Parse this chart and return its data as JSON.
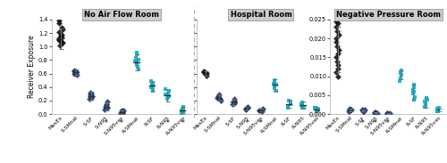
{
  "panels": [
    {
      "title": "No Air Flow Room",
      "ylim": [
        0,
        1.4
      ],
      "yticks": [
        0.0,
        0.2,
        0.4,
        0.6,
        0.8,
        1.0,
        1.2,
        1.4
      ],
      "ytick_labels": [
        "0.0",
        "0.2",
        "0.4",
        "0.6",
        "0.8",
        "1.0",
        "1.2",
        "1.4"
      ],
      "ylabel": "Receiver Exposure",
      "show_yticks": true,
      "categories": [
        "MaxEx",
        "S-SMnat",
        "S-SF",
        "S-N95",
        "S-N95vas",
        "R-SMnat",
        "R-SF",
        "R-N95",
        "R-N95vas"
      ],
      "groups": [
        {
          "color": "#111111",
          "marker": "D",
          "size": 12,
          "points": [
            1.02,
            1.05,
            1.07,
            1.08,
            1.1,
            1.11,
            1.12,
            1.14,
            1.16,
            1.18,
            1.22,
            1.25,
            1.28,
            1.35,
            1.38
          ],
          "mean": 1.12,
          "ci": 0.15,
          "asterisk": false
        },
        {
          "color": "#1b3d6e",
          "marker": "D",
          "size": 12,
          "points": [
            0.58,
            0.6,
            0.61,
            0.62,
            0.63,
            0.64,
            0.65
          ],
          "mean": 0.62,
          "ci": 0.04,
          "asterisk": false
        },
        {
          "color": "#1b3d6e",
          "marker": "D",
          "size": 12,
          "points": [
            0.22,
            0.24,
            0.26,
            0.27,
            0.28,
            0.29,
            0.31,
            0.32
          ],
          "mean": 0.27,
          "ci": 0.06,
          "asterisk": false
        },
        {
          "color": "#1b3d6e",
          "marker": "D",
          "size": 12,
          "points": [
            0.07,
            0.09,
            0.1,
            0.11,
            0.13,
            0.15,
            0.18
          ],
          "mean": 0.11,
          "ci": 0.06,
          "asterisk": true
        },
        {
          "color": "#1b3d6e",
          "marker": "D",
          "size": 12,
          "points": [
            0.01,
            0.02,
            0.03,
            0.04,
            0.05,
            0.06
          ],
          "mean": 0.03,
          "ci": 0.025,
          "asterisk": true
        },
        {
          "color": "#00b4cc",
          "marker": "s",
          "size": 12,
          "points": [
            0.66,
            0.7,
            0.73,
            0.76,
            0.78,
            0.8,
            0.83,
            0.88,
            0.91
          ],
          "mean": 0.77,
          "ci": 0.12,
          "asterisk": false
        },
        {
          "color": "#00b4cc",
          "marker": "s",
          "size": 12,
          "points": [
            0.35,
            0.38,
            0.4,
            0.42,
            0.44,
            0.46,
            0.49
          ],
          "mean": 0.42,
          "ci": 0.07,
          "asterisk": false
        },
        {
          "color": "#00b4cc",
          "marker": "s",
          "size": 12,
          "points": [
            0.22,
            0.25,
            0.27,
            0.29,
            0.31,
            0.34,
            0.37
          ],
          "mean": 0.28,
          "ci": 0.09,
          "asterisk": true
        },
        {
          "color": "#00b4cc",
          "marker": "s",
          "size": 12,
          "points": [
            0.02,
            0.04,
            0.05,
            0.06,
            0.08,
            0.09,
            0.11
          ],
          "mean": 0.06,
          "ci": 0.05,
          "asterisk": true
        }
      ]
    },
    {
      "title": "Hospital Room",
      "ylim": [
        0,
        1.4
      ],
      "yticks": [
        0.0,
        0.2,
        0.4,
        0.6,
        0.8,
        1.0,
        1.2,
        1.4
      ],
      "ytick_labels": [
        "",
        "",
        "",
        "",
        "",
        "",
        "",
        ""
      ],
      "ylabel": "",
      "show_yticks": false,
      "categories": [
        "MaxEx",
        "S-SMnat",
        "S-SF",
        "S-N95",
        "S-N95vas",
        "R-SMnat",
        "R-SF",
        "R-N95",
        "R-N95vas"
      ],
      "groups": [
        {
          "color": "#111111",
          "marker": "D",
          "size": 12,
          "points": [
            0.57,
            0.59,
            0.6,
            0.61,
            0.62,
            0.63
          ],
          "mean": 0.6,
          "ci": 0.03,
          "asterisk": false
        },
        {
          "color": "#1b3d6e",
          "marker": "D",
          "size": 12,
          "points": [
            0.2,
            0.22,
            0.24,
            0.25,
            0.27,
            0.29
          ],
          "mean": 0.245,
          "ci": 0.05,
          "asterisk": false
        },
        {
          "color": "#1b3d6e",
          "marker": "D",
          "size": 12,
          "points": [
            0.14,
            0.16,
            0.17,
            0.19,
            0.2,
            0.22
          ],
          "mean": 0.18,
          "ci": 0.05,
          "asterisk": false
        },
        {
          "color": "#1b3d6e",
          "marker": "D",
          "size": 12,
          "points": [
            0.07,
            0.08,
            0.09,
            0.1,
            0.11
          ],
          "mean": 0.09,
          "ci": 0.02,
          "asterisk": true
        },
        {
          "color": "#1b3d6e",
          "marker": "D",
          "size": 12,
          "points": [
            0.04,
            0.05,
            0.06,
            0.07,
            0.08
          ],
          "mean": 0.06,
          "ci": 0.02,
          "asterisk": true
        },
        {
          "color": "#00b4cc",
          "marker": "s",
          "size": 12,
          "points": [
            0.35,
            0.38,
            0.41,
            0.43,
            0.45,
            0.47,
            0.5
          ],
          "mean": 0.43,
          "ci": 0.08,
          "asterisk": false
        },
        {
          "color": "#00b4cc",
          "marker": "s",
          "size": 12,
          "points": [
            0.1,
            0.12,
            0.14,
            0.16,
            0.18,
            0.2
          ],
          "mean": 0.15,
          "ci": 0.06,
          "asterisk": false
        },
        {
          "color": "#00b4cc",
          "marker": "s",
          "size": 12,
          "points": [
            0.09,
            0.11,
            0.13,
            0.15,
            0.17
          ],
          "mean": 0.13,
          "ci": 0.05,
          "asterisk": false
        },
        {
          "color": "#00b4cc",
          "marker": "s",
          "size": 12,
          "points": [
            0.04,
            0.05,
            0.07,
            0.08,
            0.09,
            0.1
          ],
          "mean": 0.072,
          "ci": 0.03,
          "asterisk": false
        }
      ]
    },
    {
      "title": "Negative Pressure Room",
      "ylim": [
        0,
        0.025
      ],
      "yticks": [
        0.0,
        0.005,
        0.01,
        0.015,
        0.02,
        0.025
      ],
      "ytick_labels": [
        "0.000",
        "0.005",
        "0.010",
        "0.015",
        "0.020",
        "0.025"
      ],
      "ylabel": "",
      "show_yticks": true,
      "categories": [
        "MaxEx",
        "S-SMnat",
        "S-SF",
        "S-N95",
        "S-N95vas",
        "R-SMnat",
        "R-SF",
        "R-N95",
        "R-N95vas"
      ],
      "groups": [
        {
          "color": "#111111",
          "marker": "D",
          "size": 12,
          "points": [
            0.01,
            0.011,
            0.012,
            0.013,
            0.014,
            0.015,
            0.016,
            0.017,
            0.018,
            0.019,
            0.02,
            0.021,
            0.022,
            0.023,
            0.024,
            0.0245
          ],
          "mean": 0.017,
          "ci": 0.006,
          "asterisk": false
        },
        {
          "color": "#1b3d6e",
          "marker": "D",
          "size": 12,
          "points": [
            0.0008,
            0.0009,
            0.001,
            0.0011,
            0.0012,
            0.0013,
            0.0014
          ],
          "mean": 0.0011,
          "ci": 0.0003,
          "asterisk": false
        },
        {
          "color": "#1b3d6e",
          "marker": "D",
          "size": 12,
          "points": [
            0.0007,
            0.0008,
            0.0009,
            0.001,
            0.0011,
            0.0013
          ],
          "mean": 0.001,
          "ci": 0.0003,
          "asterisk": true
        },
        {
          "color": "#1b3d6e",
          "marker": "D",
          "size": 12,
          "points": [
            0.0002,
            0.0003,
            0.0003,
            0.0004,
            0.0005
          ],
          "mean": 0.00035,
          "ci": 0.0001,
          "asterisk": true
        },
        {
          "color": "#1b3d6e",
          "marker": "D",
          "size": 12,
          "points": [
            0.0001,
            0.0001,
            0.0002,
            0.0002,
            0.0003
          ],
          "mean": 0.00018,
          "ci": 8e-05,
          "asterisk": true
        },
        {
          "color": "#00b4cc",
          "marker": "s",
          "size": 12,
          "points": [
            0.0088,
            0.0095,
            0.0105,
            0.0108,
            0.0112,
            0.0115
          ],
          "mean": 0.0104,
          "ci": 0.0012,
          "asterisk": false
        },
        {
          "color": "#00b4cc",
          "marker": "s",
          "size": 12,
          "points": [
            0.0038,
            0.0045,
            0.0055,
            0.006,
            0.0065,
            0.0072,
            0.0078
          ],
          "mean": 0.0059,
          "ci": 0.002,
          "asterisk": false
        },
        {
          "color": "#00b4cc",
          "marker": "s",
          "size": 12,
          "points": [
            0.0018,
            0.0022,
            0.0028,
            0.0033,
            0.0038,
            0.0042
          ],
          "mean": 0.003,
          "ci": 0.0013,
          "asterisk": false
        },
        {
          "color": "#00b4cc",
          "marker": "s",
          "size": 12,
          "points": [
            0.0007,
            0.0008,
            0.001,
            0.0012,
            0.0014,
            0.0016
          ],
          "mean": 0.0011,
          "ci": 0.0004,
          "asterisk": false
        }
      ]
    }
  ],
  "bg_color": "#ffffff",
  "title_bg": "#cccccc",
  "title_border": "#999999",
  "jitter_seed": 42,
  "point_alpha": 0.9,
  "ci_color": "#777777",
  "mean_color": "#333333",
  "spine_color": "#aaaaaa",
  "divider_color": "#aaaaaa"
}
